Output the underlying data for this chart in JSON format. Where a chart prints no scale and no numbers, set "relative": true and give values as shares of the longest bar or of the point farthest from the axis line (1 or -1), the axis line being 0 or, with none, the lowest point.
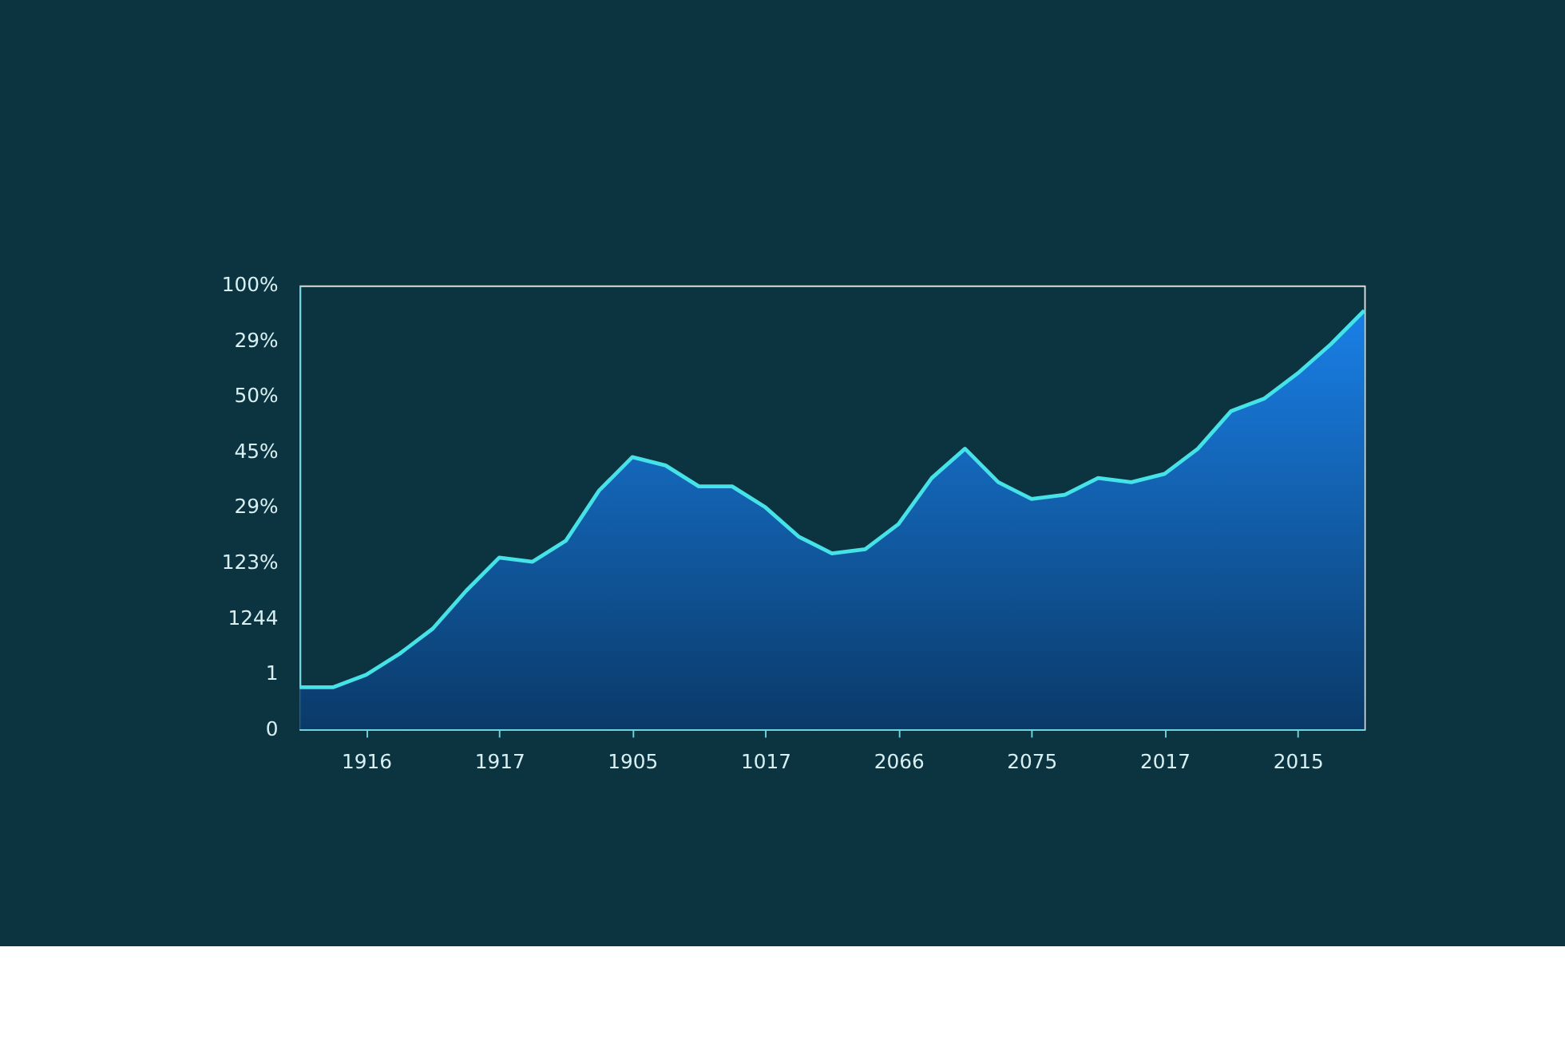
{
  "chart_data": {
    "type": "area",
    "relative": true,
    "categories": [
      null,
      null,
      "1916",
      null,
      null,
      null,
      "1917",
      null,
      null,
      null,
      "1905",
      null,
      null,
      null,
      "1017",
      null,
      null,
      null,
      "2066",
      null,
      null,
      null,
      "2075",
      null,
      null,
      null,
      "2017",
      null,
      null,
      null,
      "2015",
      null,
      null
    ],
    "series": [
      {
        "color": "#1a84f0",
        "values": [
          0.1,
          0.1,
          0.13,
          0.18,
          0.24,
          0.33,
          0.41,
          0.4,
          0.45,
          0.57,
          0.65,
          0.63,
          0.58,
          0.58,
          0.53,
          0.46,
          0.42,
          0.43,
          0.49,
          0.6,
          0.67,
          0.59,
          0.55,
          0.56,
          0.6,
          0.59,
          0.61,
          0.67,
          0.76,
          0.79,
          0.85,
          0.92,
          1.0
        ]
      }
    ],
    "annotations": [
      "100%",
      "29%",
      "50%",
      "45%",
      "29%",
      "123%",
      "1244",
      "1",
      "0"
    ]
  }
}
